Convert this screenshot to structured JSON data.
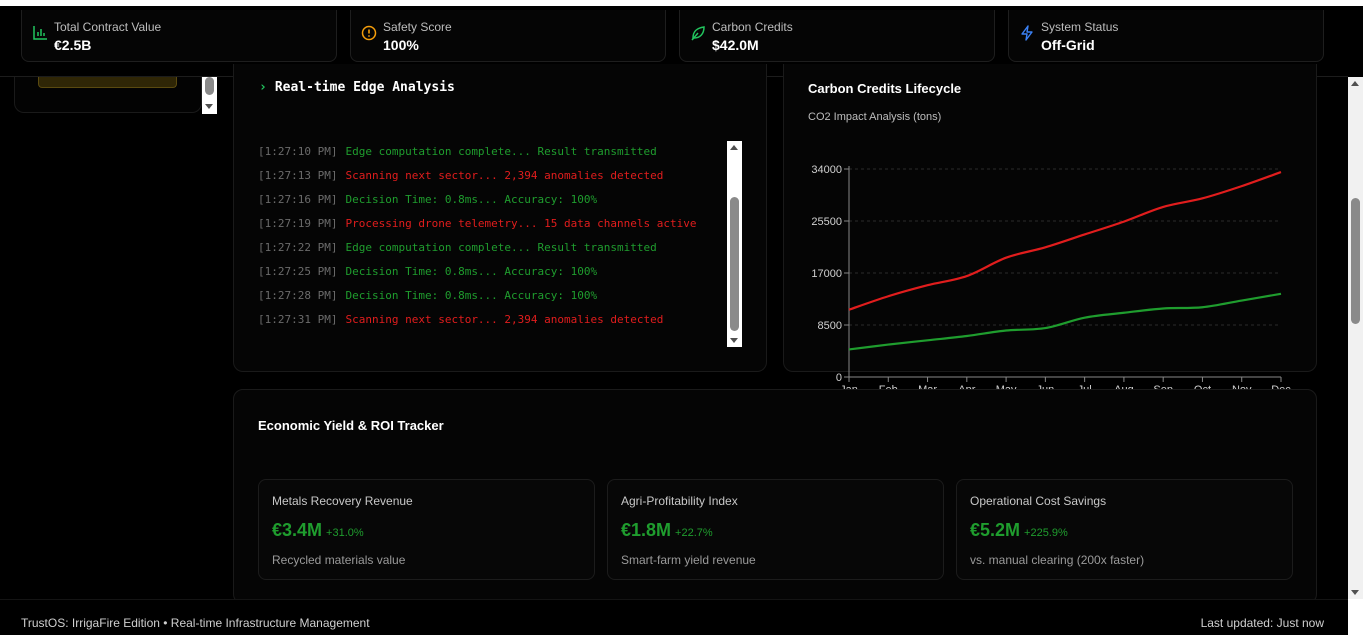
{
  "kpis": [
    {
      "label": "Total Contract Value",
      "value": "€2.5B",
      "icon": "bar-chart-icon",
      "color": "#22c55e"
    },
    {
      "label": "Safety Score",
      "value": "100%",
      "icon": "alert-circle-icon",
      "color": "#f59e0b"
    },
    {
      "label": "Carbon Credits",
      "value": "$42.0M",
      "icon": "leaf-icon",
      "color": "#22c55e"
    },
    {
      "label": "System Status",
      "value": "Off-Grid",
      "icon": "lightning-icon",
      "color": "#3b82f6"
    }
  ],
  "terminal": {
    "title": "Real-time Edge Analysis",
    "logs": [
      {
        "time": "[1:27:10 PM]",
        "msg": "Edge computation complete... Result transmitted",
        "level": "ok"
      },
      {
        "time": "[1:27:13 PM]",
        "msg": "Scanning next sector... 2,394 anomalies detected",
        "level": "warn"
      },
      {
        "time": "[1:27:16 PM]",
        "msg": "Decision Time: 0.8ms... Accuracy: 100%",
        "level": "ok"
      },
      {
        "time": "[1:27:19 PM]",
        "msg": "Processing drone telemetry... 15 data channels active",
        "level": "warn"
      },
      {
        "time": "[1:27:22 PM]",
        "msg": "Edge computation complete... Result transmitted",
        "level": "ok"
      },
      {
        "time": "[1:27:25 PM]",
        "msg": "Decision Time: 0.8ms... Accuracy: 100%",
        "level": "ok"
      },
      {
        "time": "[1:27:28 PM]",
        "msg": "Decision Time: 0.8ms... Accuracy: 100%",
        "level": "ok"
      },
      {
        "time": "[1:27:31 PM]",
        "msg": "Scanning next sector... 2,394 anomalies detected",
        "level": "warn"
      }
    ]
  },
  "carbon": {
    "title": "Carbon Credits Lifecycle",
    "subtitle": "CO2 Impact Analysis (tons)"
  },
  "chart_data": {
    "type": "line",
    "title": "Carbon Credits Lifecycle",
    "subtitle": "CO2 Impact Analysis (tons)",
    "categories": [
      "Jan",
      "Feb",
      "Mar",
      "Apr",
      "May",
      "Jun",
      "Jul",
      "Aug",
      "Sep",
      "Oct",
      "Nov",
      "Dec"
    ],
    "y_ticks": [
      0,
      8500,
      17000,
      25500,
      34000
    ],
    "y_tick_labels": [
      "0",
      "8500",
      "17000",
      "25500",
      "34000"
    ],
    "ylim": [
      0,
      34000
    ],
    "grid": true,
    "series": [
      {
        "color": "#e11d1d",
        "values": [
          11000,
          13200,
          15000,
          16500,
          19500,
          21200,
          23300,
          25400,
          27800,
          29200,
          31200,
          33500
        ]
      },
      {
        "color": "#1f9d2e",
        "values": [
          4500,
          5300,
          6000,
          6700,
          7600,
          8000,
          9700,
          10500,
          11200,
          11400,
          12500,
          13600
        ]
      }
    ]
  },
  "yield": {
    "title": "Economic Yield & ROI Tracker",
    "metrics": [
      {
        "label": "Metals Recovery Revenue",
        "value": "€3.4M",
        "delta": "+31.0%",
        "desc": "Recycled materials value"
      },
      {
        "label": "Agri-Profitability Index",
        "value": "€1.8M",
        "delta": "+22.7%",
        "desc": "Smart-farm yield revenue"
      },
      {
        "label": "Operational Cost Savings",
        "value": "€5.2M",
        "delta": "+225.9%",
        "desc": "vs. manual clearing (200x faster)"
      }
    ]
  },
  "footer": {
    "left": "TrustOS: IrrigaFire Edition • Real-time Infrastructure Management",
    "right": "Last updated: Just now"
  }
}
